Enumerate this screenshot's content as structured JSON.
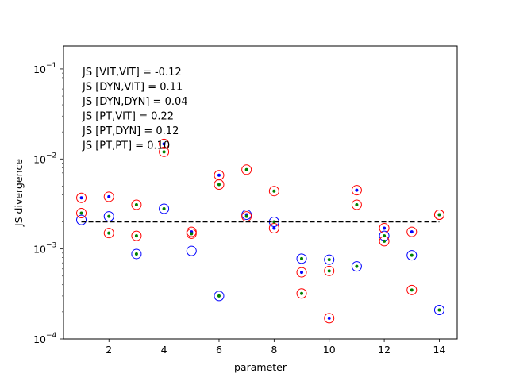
{
  "chart_data": {
    "type": "scatter",
    "xlabel": "parameter",
    "ylabel": "JS divergence",
    "xlim": [
      0.35,
      14.65
    ],
    "ylim": [
      0.0001,
      0.18
    ],
    "yscale": "log",
    "x_ticks": [
      2,
      4,
      6,
      8,
      10,
      12,
      14
    ],
    "x_tick_labels": [
      "2",
      "4",
      "6",
      "8",
      "10",
      "12",
      "14"
    ],
    "y_ticks": [
      0.0001,
      0.001,
      0.01,
      0.1
    ],
    "y_tick_labels": [
      "10",
      "10",
      "10",
      "10"
    ],
    "y_tick_exponents": [
      "−4",
      "−3",
      "−2",
      "−1"
    ],
    "grid": false,
    "legend": "none",
    "reference_line": {
      "y": 0.002,
      "x_range": [
        1,
        14
      ],
      "style": "dashed",
      "color": "#000000"
    },
    "annotations": [
      "JS [VIT,VIT] = -0.12",
      "JS [DYN,VIT] = 0.11",
      "JS [DYN,DYN] = 0.04",
      "JS [PT,VIT] = 0.22",
      "JS [PT,DYN] = 0.12",
      "JS [PT,PT] = 0.10"
    ],
    "series": [
      {
        "marker": "open-circle",
        "color": "#0000ff",
        "points": [
          [
            1,
            0.0021
          ],
          [
            2,
            0.0023
          ],
          [
            3,
            0.00088
          ],
          [
            4,
            0.0028
          ],
          [
            5,
            0.00095
          ],
          [
            6,
            0.0003
          ],
          [
            7,
            0.0024
          ],
          [
            8,
            0.002
          ],
          [
            9,
            0.00078
          ],
          [
            10,
            0.00076
          ],
          [
            11,
            0.00064
          ],
          [
            12,
            0.0014
          ],
          [
            13,
            0.00085
          ],
          [
            14,
            0.00021
          ]
        ]
      },
      {
        "marker": "open-circle",
        "color": "#ff0000",
        "points": [
          [
            1,
            0.0037
          ],
          [
            1,
            0.0025
          ],
          [
            2,
            0.0038
          ],
          [
            2,
            0.0015
          ],
          [
            3,
            0.0031
          ],
          [
            3,
            0.0014
          ],
          [
            4,
            0.0147
          ],
          [
            4,
            0.012
          ],
          [
            5,
            0.00155
          ],
          [
            5,
            0.00148
          ],
          [
            6,
            0.0066
          ],
          [
            6,
            0.0052
          ],
          [
            7,
            0.0076
          ],
          [
            7,
            0.0023
          ],
          [
            8,
            0.0044
          ],
          [
            8,
            0.0017
          ],
          [
            9,
            0.00055
          ],
          [
            9,
            0.00032
          ],
          [
            10,
            0.00057
          ],
          [
            10,
            0.00017
          ],
          [
            11,
            0.0045
          ],
          [
            11,
            0.0031
          ],
          [
            12,
            0.0017
          ],
          [
            12,
            0.00122
          ],
          [
            13,
            0.00155
          ],
          [
            13,
            0.00035
          ],
          [
            14,
            0.0024
          ],
          [
            14,
            0.0024
          ]
        ]
      },
      {
        "marker": "dot",
        "color": "#0000ff",
        "points": [
          [
            1,
            0.0037
          ],
          [
            2,
            0.0038
          ],
          [
            4,
            0.0147
          ],
          [
            5,
            0.00155
          ],
          [
            6,
            0.0066
          ],
          [
            7,
            0.0024
          ],
          [
            8,
            0.0017
          ],
          [
            9,
            0.00055
          ],
          [
            10,
            0.00017
          ],
          [
            11,
            0.0045
          ],
          [
            12,
            0.0017
          ],
          [
            13,
            0.00155
          ],
          [
            14,
            0.0024
          ]
        ]
      },
      {
        "marker": "dot",
        "color": "#008000",
        "points": [
          [
            1,
            0.0025
          ],
          [
            2,
            0.0023
          ],
          [
            2,
            0.0015
          ],
          [
            3,
            0.0031
          ],
          [
            3,
            0.0014
          ],
          [
            3,
            0.00088
          ],
          [
            4,
            0.0028
          ],
          [
            4,
            0.012
          ],
          [
            5,
            0.00148
          ],
          [
            6,
            0.0052
          ],
          [
            6,
            0.0003
          ],
          [
            7,
            0.0076
          ],
          [
            7,
            0.0023
          ],
          [
            8,
            0.0044
          ],
          [
            8,
            0.002
          ],
          [
            9,
            0.00078
          ],
          [
            9,
            0.00032
          ],
          [
            10,
            0.00076
          ],
          [
            10,
            0.00057
          ],
          [
            11,
            0.0031
          ],
          [
            11,
            0.00064
          ],
          [
            12,
            0.00122
          ],
          [
            12,
            0.0014
          ],
          [
            13,
            0.00085
          ],
          [
            13,
            0.00035
          ],
          [
            14,
            0.0024
          ],
          [
            14,
            0.00021
          ]
        ]
      }
    ]
  }
}
